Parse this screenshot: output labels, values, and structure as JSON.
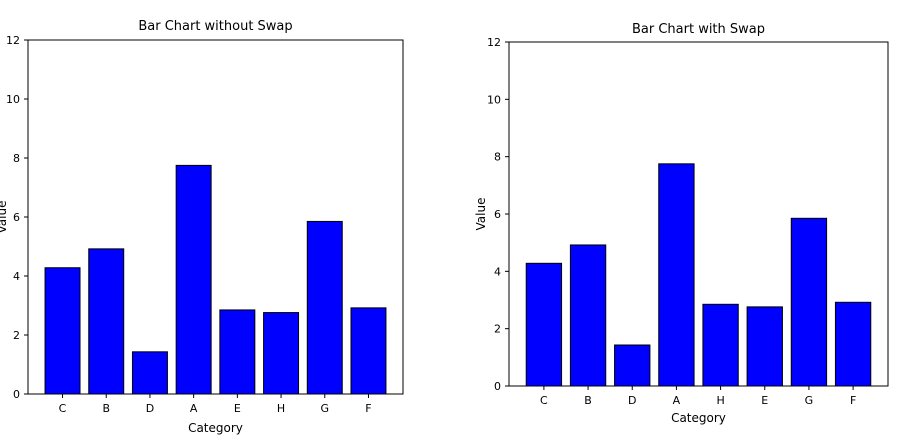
{
  "chart_data": [
    {
      "type": "bar",
      "title": "Bar Chart without Swap",
      "xlabel": "Category",
      "ylabel": "Value",
      "categories": [
        "C",
        "B",
        "D",
        "A",
        "E",
        "H",
        "G",
        "F"
      ],
      "values": [
        4.28,
        4.92,
        1.43,
        7.75,
        2.85,
        2.76,
        5.85,
        2.92
      ],
      "ylim": [
        0,
        12
      ],
      "yticks": [
        0,
        2,
        4,
        6,
        8,
        10,
        12
      ],
      "bar_color": "#0000ff",
      "edge_color": "#000000",
      "grid": false
    },
    {
      "type": "bar",
      "title": "Bar Chart with Swap",
      "xlabel": "Category",
      "ylabel": "Value",
      "categories": [
        "C",
        "B",
        "D",
        "A",
        "H",
        "E",
        "G",
        "F"
      ],
      "values": [
        4.28,
        4.92,
        1.43,
        7.75,
        2.85,
        2.76,
        5.85,
        2.92
      ],
      "ylim": [
        0,
        12
      ],
      "yticks": [
        0,
        2,
        4,
        6,
        8,
        10,
        12
      ],
      "bar_color": "#0000ff",
      "edge_color": "#000000",
      "grid": false
    }
  ]
}
